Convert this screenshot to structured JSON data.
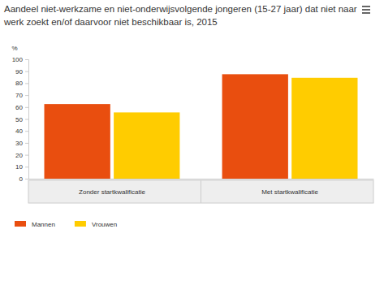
{
  "chart_data": {
    "type": "bar",
    "title": [
      "Aandeel niet-werkzame en niet-onderwijsvolgende jongeren (15-27 jaar) dat niet naar",
      "werk zoekt en/of daarvoor niet beschikbaar is, 2015"
    ],
    "y_label": "%",
    "categories": [
      "Zonder startkwalificatie",
      "Met startkwalificatie"
    ],
    "series": [
      {
        "name": "Mannen",
        "color": "#e94e0f",
        "values": [
          62.5,
          87.5
        ]
      },
      {
        "name": "Vrouwen",
        "color": "#ffcc00",
        "values": [
          55.5,
          84.5
        ]
      }
    ],
    "ylim": [
      0,
      100
    ],
    "yticks": [
      0,
      10,
      20,
      30,
      40,
      50,
      60,
      70,
      80,
      90,
      100
    ],
    "grid": false,
    "legend": "bottom-left"
  }
}
